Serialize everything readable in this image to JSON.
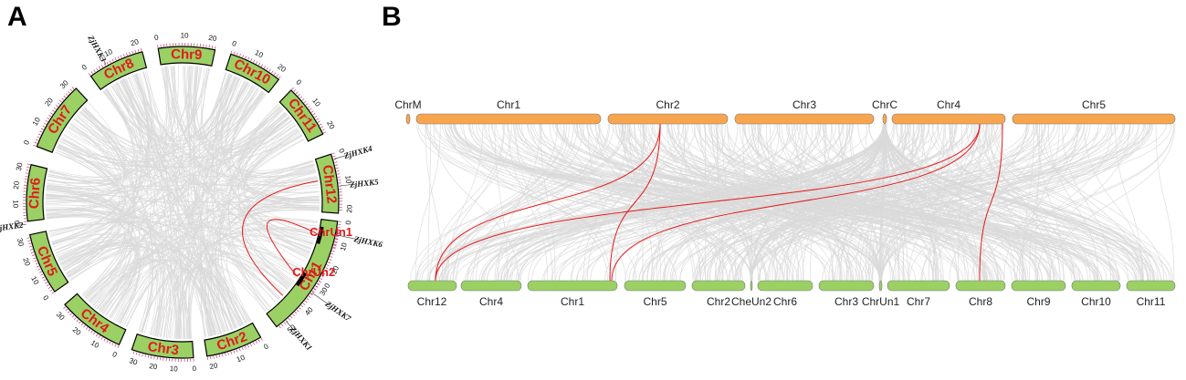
{
  "panels": {
    "a_label": "A",
    "b_label": "B"
  },
  "colors": {
    "link_gray": "#d9d9d9",
    "link_red": "#e8191c",
    "chr_green": "#9bd065",
    "chr_orange": "#f7a54e",
    "label_red": "#e01b1b"
  },
  "panel_a": {
    "chromosomes": [
      {
        "name": "Chr1",
        "ticks": [
          "0",
          "10",
          "20",
          "30",
          "40",
          "50"
        ]
      },
      {
        "name": "Chr2",
        "ticks": [
          "0",
          "10",
          "20"
        ]
      },
      {
        "name": "Chr3",
        "ticks": [
          "0",
          "10",
          "20",
          "30"
        ]
      },
      {
        "name": "Chr4",
        "ticks": [
          "0",
          "10",
          "20",
          "30"
        ]
      },
      {
        "name": "Chr5",
        "ticks": [
          "0",
          "10",
          "20",
          "30"
        ]
      },
      {
        "name": "Chr6",
        "ticks": [
          "0",
          "10",
          "20",
          "30"
        ]
      },
      {
        "name": "Chr7",
        "ticks": [
          "0",
          "10",
          "20",
          "30"
        ]
      },
      {
        "name": "Chr8",
        "ticks": [
          "0",
          "10",
          "20"
        ]
      },
      {
        "name": "Chr9",
        "ticks": [
          "0",
          "10",
          "20"
        ]
      },
      {
        "name": "Chr10",
        "ticks": [
          "0",
          "10",
          "20"
        ]
      },
      {
        "name": "Chr11",
        "ticks": [
          "0",
          "10",
          "20"
        ]
      },
      {
        "name": "Chr12",
        "ticks": [
          "0",
          "10",
          "20"
        ]
      },
      {
        "name": "ChrUn1",
        "ticks": []
      },
      {
        "name": "ChrUn2",
        "ticks": [
          "0"
        ]
      }
    ],
    "genes": [
      {
        "name": "ZjHXK1",
        "chr": "Chr1"
      },
      {
        "name": "ZjHXK2",
        "chr": "Chr6"
      },
      {
        "name": "ZjHXK3",
        "chr": "Chr8"
      },
      {
        "name": "ZjHXK4",
        "chr": "Chr12"
      },
      {
        "name": "ZjHXK5",
        "chr": "Chr12"
      },
      {
        "name": "ZjHXK6",
        "chr": "ChrUn1"
      },
      {
        "name": "ZjHXK7",
        "chr": "ChrUn2"
      }
    ]
  },
  "panel_b": {
    "top_chromosomes": [
      "ChrM",
      "Chr1",
      "Chr2",
      "Chr3",
      "ChrC",
      "Chr4",
      "Chr5"
    ],
    "bottom_chromosomes": [
      "Chr12",
      "Chr4",
      "Chr1",
      "Chr5",
      "Chr2",
      "CheUn2",
      "Chr6",
      "Chr3",
      "ChrUn1",
      "Chr7",
      "Chr8",
      "Chr9",
      "Chr10",
      "Chr11"
    ]
  }
}
